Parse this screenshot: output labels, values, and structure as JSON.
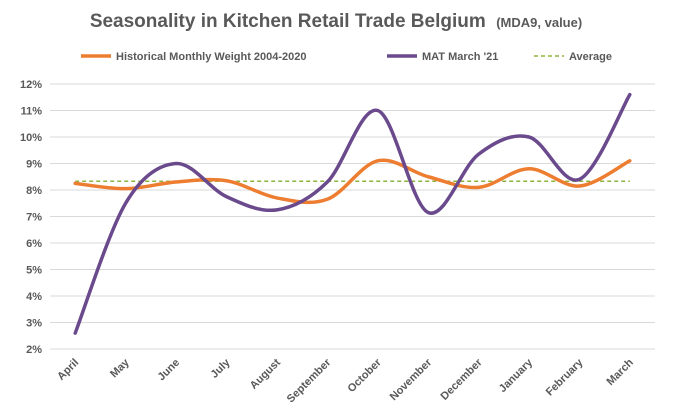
{
  "chart_data": {
    "type": "line",
    "title": "Seasonality in Kitchen Retail Trade Belgium",
    "subtitle": "(MDA9, value)",
    "categories": [
      "April",
      "May",
      "June",
      "July",
      "August",
      "September",
      "October",
      "November",
      "December",
      "January",
      "February",
      "March"
    ],
    "series": [
      {
        "name": "Historical Monthly Weight 2004-2020",
        "color": "#ED7D31",
        "style": "solid",
        "values": [
          8.25,
          8.05,
          8.3,
          8.35,
          7.7,
          7.65,
          9.1,
          8.5,
          8.1,
          8.8,
          8.15,
          9.1
        ]
      },
      {
        "name": "MAT March '21",
        "color": "#6A4A8C",
        "style": "solid",
        "values": [
          2.6,
          7.5,
          9.0,
          7.75,
          7.25,
          8.3,
          11.0,
          7.15,
          9.35,
          10.0,
          8.4,
          11.6
        ]
      },
      {
        "name": "Average",
        "color": "#8DB43E",
        "style": "dashed",
        "values": [
          8.33,
          8.33,
          8.33,
          8.33,
          8.33,
          8.33,
          8.33,
          8.33,
          8.33,
          8.33,
          8.33,
          8.33
        ]
      }
    ],
    "y_ticks": [
      "2%",
      "3%",
      "4%",
      "5%",
      "6%",
      "7%",
      "8%",
      "9%",
      "10%",
      "11%",
      "12%"
    ],
    "ylim": [
      2,
      12
    ],
    "grid": true,
    "legend_position": "top"
  }
}
